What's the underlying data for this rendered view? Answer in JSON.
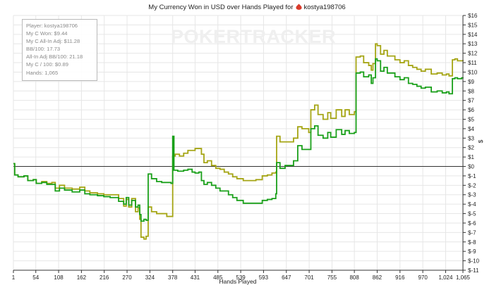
{
  "page": {
    "title_prefix": "My Currency Won in USD over Hands Played for",
    "player_name": "kostya198706",
    "watermark": "POKERTRACKER"
  },
  "stats": {
    "player": "Player: kostya198706",
    "my_c_won": "My C Won: $9.44",
    "my_c_allin_adj": "My C All-In Adj: $11.28",
    "bb_100": "BB/100: 17.73",
    "allin_adj_bb_100": "All-In Adj BB/100: 21.18",
    "my_c_100": "My C / 100: $0.89",
    "hands": "Hands: 1,065"
  },
  "colors": {
    "won_line": "#1aa01a",
    "allin_line": "#a5a514",
    "zero_line": "#333333",
    "grid": "#e6e6e6",
    "icon": "#d93a2b"
  },
  "chart_data": {
    "type": "line",
    "title": "My Currency Won in USD over Hands Played for kostya198706",
    "xlabel": "Hands Played",
    "ylabel": "$",
    "xlim": [
      1,
      1065
    ],
    "ylim": [
      -11,
      16
    ],
    "x_ticks": [
      1,
      54,
      108,
      162,
      216,
      270,
      324,
      378,
      431,
      485,
      539,
      593,
      647,
      701,
      755,
      808,
      862,
      916,
      970,
      1024,
      1065
    ],
    "x_tick_labels": [
      "1",
      "54",
      "108",
      "162",
      "216",
      "270",
      "324",
      "378",
      "431",
      "485",
      "539",
      "593",
      "647",
      "701",
      "755",
      "808",
      "862",
      "916",
      "970",
      "1,024",
      "1,065"
    ],
    "y_ticks": [
      -11,
      -10,
      -9,
      -8,
      -7,
      -6,
      -5,
      -4,
      -3,
      -2,
      -1,
      0,
      1,
      2,
      3,
      4,
      5,
      6,
      7,
      8,
      9,
      10,
      11,
      12,
      13,
      14,
      15,
      16
    ],
    "y_tick_labels": [
      "$-11",
      "$-10",
      "$-9",
      "$-8",
      "$-7",
      "$-6",
      "$-5",
      "$-4",
      "$-3",
      "$-2",
      "$-1",
      "$0",
      "$1",
      "$2",
      "$3",
      "$4",
      "$5",
      "$6",
      "$7",
      "$8",
      "$9",
      "$10",
      "$11",
      "$12",
      "$13",
      "$14",
      "$15",
      "$16"
    ],
    "grid": true,
    "series": [
      {
        "name": "My C All-In Adj",
        "color": "#a5a514",
        "points": [
          [
            1,
            0.3
          ],
          [
            4,
            -0.9
          ],
          [
            12,
            -1.1
          ],
          [
            26,
            -1.0
          ],
          [
            35,
            -1.5
          ],
          [
            48,
            -1.4
          ],
          [
            55,
            -1.8
          ],
          [
            68,
            -1.6
          ],
          [
            80,
            -1.8
          ],
          [
            92,
            -1.7
          ],
          [
            100,
            -2.3
          ],
          [
            110,
            -2.0
          ],
          [
            122,
            -2.3
          ],
          [
            140,
            -2.4
          ],
          [
            158,
            -2.2
          ],
          [
            170,
            -2.6
          ],
          [
            182,
            -2.8
          ],
          [
            200,
            -2.9
          ],
          [
            215,
            -3.0
          ],
          [
            230,
            -3.0
          ],
          [
            250,
            -3.4
          ],
          [
            262,
            -4.2
          ],
          [
            268,
            -3.5
          ],
          [
            274,
            -4.3
          ],
          [
            281,
            -3.4
          ],
          [
            290,
            -4.8
          ],
          [
            296,
            -4.4
          ],
          [
            300,
            -5.6
          ],
          [
            303,
            -7.5
          ],
          [
            310,
            -7.7
          ],
          [
            315,
            -7.4
          ],
          [
            320,
            -4.3
          ],
          [
            328,
            -4.8
          ],
          [
            340,
            -5.0
          ],
          [
            352,
            -5.0
          ],
          [
            364,
            -5.3
          ],
          [
            374,
            -5.3
          ],
          [
            378,
            1.1
          ],
          [
            384,
            1.3
          ],
          [
            394,
            1.1
          ],
          [
            404,
            1.4
          ],
          [
            414,
            1.7
          ],
          [
            424,
            1.7
          ],
          [
            431,
            1.9
          ],
          [
            440,
            1.9
          ],
          [
            446,
            1.3
          ],
          [
            452,
            0.4
          ],
          [
            460,
            0.6
          ],
          [
            470,
            0.1
          ],
          [
            480,
            -0.2
          ],
          [
            490,
            -0.3
          ],
          [
            500,
            -0.6
          ],
          [
            510,
            -0.8
          ],
          [
            520,
            -1.1
          ],
          [
            530,
            -1.3
          ],
          [
            545,
            -1.5
          ],
          [
            560,
            -1.5
          ],
          [
            575,
            -1.4
          ],
          [
            590,
            -1.0
          ],
          [
            602,
            -0.9
          ],
          [
            613,
            -0.7
          ],
          [
            622,
            -0.6
          ],
          [
            624,
            3.2
          ],
          [
            632,
            2.6
          ],
          [
            644,
            2.6
          ],
          [
            656,
            2.6
          ],
          [
            664,
            3.0
          ],
          [
            674,
            4.2
          ],
          [
            684,
            4.0
          ],
          [
            700,
            3.6
          ],
          [
            705,
            6.0
          ],
          [
            714,
            6.5
          ],
          [
            722,
            5.5
          ],
          [
            734,
            5.0
          ],
          [
            745,
            5.7
          ],
          [
            752,
            5.1
          ],
          [
            765,
            6.0
          ],
          [
            778,
            5.3
          ],
          [
            786,
            6.0
          ],
          [
            796,
            5.5
          ],
          [
            808,
            5.8
          ],
          [
            812,
            11.6
          ],
          [
            822,
            11.7
          ],
          [
            830,
            11.0
          ],
          [
            842,
            10.7
          ],
          [
            848,
            10.2
          ],
          [
            852,
            10.9
          ],
          [
            858,
            13.0
          ],
          [
            862,
            12.8
          ],
          [
            870,
            11.9
          ],
          [
            878,
            12.3
          ],
          [
            886,
            11.7
          ],
          [
            896,
            11.7
          ],
          [
            904,
            11.3
          ],
          [
            916,
            11.0
          ],
          [
            926,
            11.2
          ],
          [
            936,
            10.7
          ],
          [
            946,
            10.5
          ],
          [
            956,
            10.3
          ],
          [
            966,
            10.1
          ],
          [
            976,
            10.3
          ],
          [
            990,
            9.8
          ],
          [
            1004,
            9.9
          ],
          [
            1016,
            9.7
          ],
          [
            1026,
            9.8
          ],
          [
            1032,
            9.6
          ],
          [
            1040,
            11.3
          ],
          [
            1046,
            11.4
          ],
          [
            1052,
            11.2
          ],
          [
            1062,
            11.2
          ],
          [
            1065,
            11.28
          ]
        ]
      },
      {
        "name": "My C Won",
        "color": "#1aa01a",
        "points": [
          [
            1,
            0.3
          ],
          [
            4,
            -0.9
          ],
          [
            12,
            -1.1
          ],
          [
            26,
            -1.0
          ],
          [
            35,
            -1.5
          ],
          [
            48,
            -1.4
          ],
          [
            55,
            -1.8
          ],
          [
            68,
            -1.7
          ],
          [
            80,
            -1.9
          ],
          [
            92,
            -1.9
          ],
          [
            100,
            -2.6
          ],
          [
            110,
            -2.3
          ],
          [
            122,
            -2.5
          ],
          [
            140,
            -2.7
          ],
          [
            158,
            -2.5
          ],
          [
            170,
            -2.9
          ],
          [
            182,
            -3.0
          ],
          [
            200,
            -3.1
          ],
          [
            215,
            -3.2
          ],
          [
            230,
            -3.3
          ],
          [
            250,
            -3.7
          ],
          [
            262,
            -4.0
          ],
          [
            268,
            -3.3
          ],
          [
            274,
            -4.1
          ],
          [
            281,
            -3.6
          ],
          [
            290,
            -4.3
          ],
          [
            296,
            -4.1
          ],
          [
            300,
            -5.1
          ],
          [
            303,
            -5.8
          ],
          [
            310,
            -5.6
          ],
          [
            315,
            -5.7
          ],
          [
            320,
            -0.8
          ],
          [
            328,
            -1.3
          ],
          [
            340,
            -1.6
          ],
          [
            352,
            -1.7
          ],
          [
            364,
            -1.7
          ],
          [
            374,
            -1.8
          ],
          [
            378,
            3.2
          ],
          [
            381,
            -0.4
          ],
          [
            390,
            -0.5
          ],
          [
            404,
            -0.4
          ],
          [
            414,
            -0.3
          ],
          [
            424,
            -0.6
          ],
          [
            431,
            -0.7
          ],
          [
            440,
            -0.6
          ],
          [
            446,
            -1.5
          ],
          [
            452,
            -1.9
          ],
          [
            460,
            -1.7
          ],
          [
            470,
            -2.0
          ],
          [
            480,
            -2.3
          ],
          [
            490,
            -2.6
          ],
          [
            500,
            -2.6
          ],
          [
            510,
            -3.0
          ],
          [
            520,
            -3.3
          ],
          [
            530,
            -3.6
          ],
          [
            545,
            -3.9
          ],
          [
            560,
            -3.9
          ],
          [
            575,
            -3.9
          ],
          [
            590,
            -3.6
          ],
          [
            602,
            -3.5
          ],
          [
            613,
            -3.4
          ],
          [
            622,
            -2.9
          ],
          [
            624,
            0.4
          ],
          [
            632,
            -0.2
          ],
          [
            644,
            0.1
          ],
          [
            656,
            0.1
          ],
          [
            664,
            0.6
          ],
          [
            674,
            2.2
          ],
          [
            684,
            1.8
          ],
          [
            700,
            1.8
          ],
          [
            705,
            4.0
          ],
          [
            714,
            4.3
          ],
          [
            722,
            3.3
          ],
          [
            734,
            3.0
          ],
          [
            745,
            3.6
          ],
          [
            752,
            3.1
          ],
          [
            765,
            3.9
          ],
          [
            778,
            3.4
          ],
          [
            786,
            3.8
          ],
          [
            796,
            3.5
          ],
          [
            808,
            3.6
          ],
          [
            812,
            9.9
          ],
          [
            822,
            10.0
          ],
          [
            830,
            9.5
          ],
          [
            842,
            9.7
          ],
          [
            848,
            8.8
          ],
          [
            852,
            9.4
          ],
          [
            858,
            11.4
          ],
          [
            862,
            11.2
          ],
          [
            870,
            10.1
          ],
          [
            878,
            10.5
          ],
          [
            886,
            9.9
          ],
          [
            896,
            9.9
          ],
          [
            904,
            9.5
          ],
          [
            916,
            9.2
          ],
          [
            926,
            9.4
          ],
          [
            936,
            8.8
          ],
          [
            946,
            8.7
          ],
          [
            956,
            8.5
          ],
          [
            966,
            8.3
          ],
          [
            976,
            8.4
          ],
          [
            990,
            7.9
          ],
          [
            1004,
            8.0
          ],
          [
            1016,
            7.8
          ],
          [
            1026,
            7.9
          ],
          [
            1032,
            7.7
          ],
          [
            1040,
            9.3
          ],
          [
            1046,
            9.4
          ],
          [
            1052,
            9.3
          ],
          [
            1062,
            9.4
          ],
          [
            1065,
            9.44
          ]
        ]
      }
    ]
  }
}
